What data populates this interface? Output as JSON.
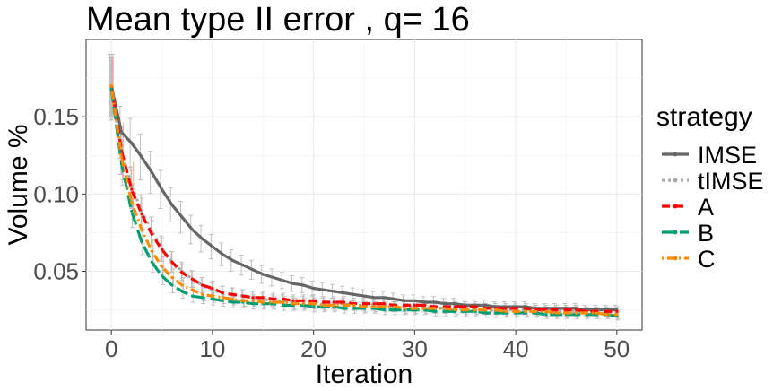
{
  "chart_data": {
    "type": "line",
    "title": "Mean type II error , q= 16",
    "xlabel": "Iteration",
    "ylabel": "Volume %",
    "xlim": [
      -2.5,
      52.5
    ],
    "ylim": [
      0.012,
      0.2
    ],
    "x_ticks": [
      0,
      10,
      20,
      30,
      40,
      50
    ],
    "x_tick_labels": [
      "0",
      "10",
      "20",
      "30",
      "40",
      "50"
    ],
    "y_ticks": [
      0.05,
      0.1,
      0.15
    ],
    "y_tick_labels": [
      "0.05",
      "0.10",
      "0.15"
    ],
    "grid": true,
    "legend_position": "right",
    "legend_title": "strategy",
    "series": [
      {
        "name": "IMSE",
        "color": "#666666",
        "dash": "solid",
        "values": [
          0.17,
          0.14,
          0.133,
          0.124,
          0.114,
          0.103,
          0.093,
          0.085,
          0.077,
          0.071,
          0.066,
          0.061,
          0.057,
          0.054,
          0.051,
          0.048,
          0.046,
          0.044,
          0.042,
          0.041,
          0.039,
          0.038,
          0.037,
          0.036,
          0.035,
          0.034,
          0.033,
          0.033,
          0.032,
          0.031,
          0.031,
          0.03,
          0.03,
          0.029,
          0.029,
          0.028,
          0.028,
          0.028,
          0.027,
          0.027,
          0.027,
          0.027,
          0.026,
          0.026,
          0.026,
          0.026,
          0.026,
          0.025,
          0.025,
          0.025,
          0.025
        ]
      },
      {
        "name": "tIMSE",
        "color": "#aaaaaa",
        "dash": "dotted",
        "values": [
          0.168,
          0.128,
          0.105,
          0.089,
          0.076,
          0.065,
          0.056,
          0.05,
          0.045,
          0.041,
          0.038,
          0.036,
          0.035,
          0.034,
          0.033,
          0.032,
          0.031,
          0.031,
          0.03,
          0.03,
          0.03,
          0.029,
          0.029,
          0.029,
          0.028,
          0.028,
          0.028,
          0.028,
          0.027,
          0.027,
          0.027,
          0.027,
          0.026,
          0.026,
          0.026,
          0.026,
          0.026,
          0.025,
          0.025,
          0.025,
          0.025,
          0.025,
          0.025,
          0.024,
          0.024,
          0.024,
          0.024,
          0.024,
          0.024,
          0.024,
          0.023
        ]
      },
      {
        "name": "A",
        "color": "#ff0000",
        "dash": "dashed",
        "values": [
          0.17,
          0.128,
          0.103,
          0.087,
          0.074,
          0.064,
          0.056,
          0.049,
          0.045,
          0.041,
          0.039,
          0.036,
          0.035,
          0.034,
          0.033,
          0.033,
          0.032,
          0.032,
          0.031,
          0.031,
          0.031,
          0.03,
          0.03,
          0.03,
          0.029,
          0.029,
          0.029,
          0.029,
          0.028,
          0.028,
          0.028,
          0.028,
          0.027,
          0.027,
          0.027,
          0.027,
          0.027,
          0.026,
          0.026,
          0.026,
          0.026,
          0.026,
          0.025,
          0.025,
          0.025,
          0.025,
          0.025,
          0.024,
          0.024,
          0.024,
          0.024
        ]
      },
      {
        "name": "B",
        "color": "#009e73",
        "dash": "longdash",
        "values": [
          0.168,
          0.12,
          0.089,
          0.069,
          0.056,
          0.047,
          0.041,
          0.037,
          0.034,
          0.033,
          0.032,
          0.031,
          0.03,
          0.03,
          0.029,
          0.029,
          0.029,
          0.028,
          0.028,
          0.028,
          0.027,
          0.027,
          0.027,
          0.026,
          0.026,
          0.026,
          0.026,
          0.025,
          0.025,
          0.025,
          0.025,
          0.025,
          0.024,
          0.024,
          0.024,
          0.024,
          0.024,
          0.023,
          0.023,
          0.023,
          0.023,
          0.023,
          0.023,
          0.022,
          0.022,
          0.022,
          0.022,
          0.022,
          0.022,
          0.022,
          0.021
        ]
      },
      {
        "name": "C",
        "color": "#ff8c00",
        "dash": "dotdash",
        "values": [
          0.17,
          0.124,
          0.095,
          0.077,
          0.063,
          0.053,
          0.046,
          0.041,
          0.038,
          0.035,
          0.034,
          0.033,
          0.032,
          0.031,
          0.031,
          0.03,
          0.03,
          0.03,
          0.029,
          0.029,
          0.029,
          0.028,
          0.028,
          0.028,
          0.028,
          0.027,
          0.027,
          0.027,
          0.027,
          0.026,
          0.026,
          0.026,
          0.026,
          0.026,
          0.025,
          0.025,
          0.025,
          0.025,
          0.025,
          0.024,
          0.024,
          0.024,
          0.024,
          0.024,
          0.023,
          0.023,
          0.023,
          0.023,
          0.023,
          0.022,
          0.022
        ]
      }
    ]
  }
}
